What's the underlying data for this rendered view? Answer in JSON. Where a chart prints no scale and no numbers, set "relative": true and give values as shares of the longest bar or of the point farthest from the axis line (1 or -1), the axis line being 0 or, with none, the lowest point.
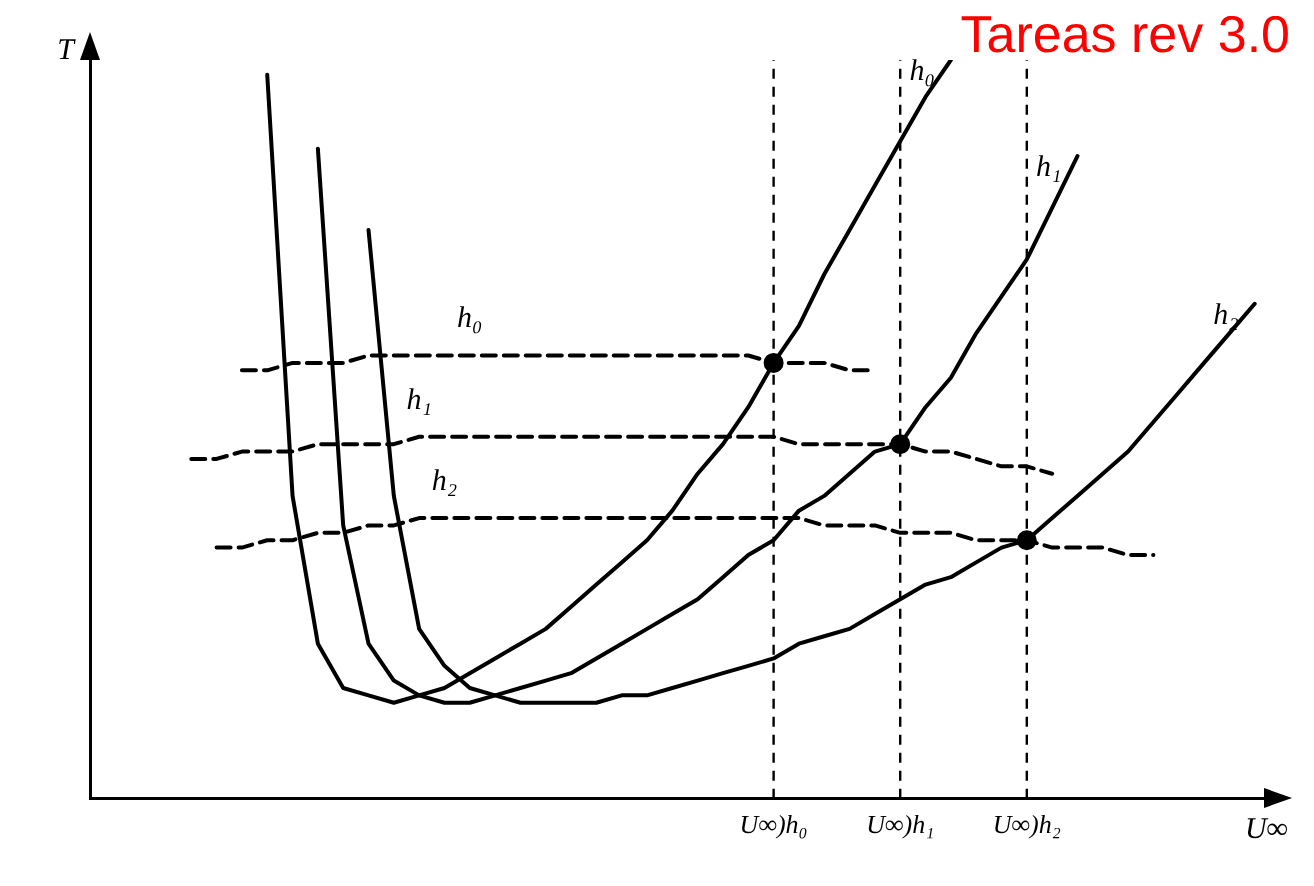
{
  "chart_data": {
    "type": "line",
    "relative": true,
    "title": "Tareas rev 3.0",
    "xlabel": "U∞",
    "ylabel": "T",
    "categories": [
      null,
      null,
      null,
      null,
      null,
      null,
      null,
      null,
      null,
      null,
      null,
      null,
      null,
      null,
      null,
      null,
      null,
      null,
      null,
      null,
      null,
      null,
      null,
      null,
      null,
      null,
      null,
      "U∞)h₀",
      null,
      null,
      null,
      null,
      "U∞)h₁",
      null,
      null,
      null,
      null,
      "U∞)h₂",
      null,
      null,
      null,
      null,
      null,
      null,
      null,
      null,
      null,
      null
    ],
    "series": [
      {
        "name": "h₀",
        "color": "#000000",
        "line_style": "solid",
        "values": [
          null,
          null,
          null,
          null,
          null,
          null,
          null,
          0.98,
          0.41,
          0.21,
          0.15,
          0.14,
          0.13,
          0.14,
          0.15,
          0.17,
          0.19,
          0.21,
          0.23,
          0.26,
          0.29,
          0.32,
          0.35,
          0.39,
          0.44,
          0.48,
          0.53,
          0.59,
          0.64,
          0.71,
          0.77,
          0.83,
          0.89,
          0.95,
          1,
          null,
          null,
          null,
          null,
          null,
          null,
          null,
          null,
          null,
          null,
          null,
          null,
          null
        ]
      },
      {
        "name": "h₁",
        "color": "#000000",
        "line_style": "solid",
        "values": [
          null,
          null,
          null,
          null,
          null,
          null,
          null,
          null,
          null,
          0.88,
          0.37,
          0.21,
          0.16,
          0.14,
          0.13,
          0.13,
          0.14,
          0.15,
          0.16,
          0.17,
          0.19,
          0.21,
          0.23,
          0.25,
          0.27,
          0.3,
          0.33,
          0.35,
          0.39,
          0.41,
          0.44,
          0.47,
          0.48,
          0.53,
          0.57,
          0.63,
          0.68,
          0.73,
          0.8,
          0.87,
          null,
          null,
          null,
          null,
          null,
          null,
          null,
          null
        ]
      },
      {
        "name": "h₂",
        "color": "#000000",
        "line_style": "solid",
        "values": [
          null,
          null,
          null,
          null,
          null,
          null,
          null,
          null,
          null,
          null,
          null,
          0.77,
          0.41,
          0.23,
          0.18,
          0.15,
          0.14,
          0.13,
          0.13,
          0.13,
          0.13,
          0.14,
          0.14,
          0.15,
          0.16,
          0.17,
          0.18,
          0.19,
          0.21,
          0.22,
          0.23,
          0.25,
          0.27,
          0.29,
          0.3,
          0.32,
          0.34,
          0.35,
          0.38,
          0.41,
          0.44,
          0.47,
          0.51,
          0.55,
          0.59,
          0.63,
          0.67,
          null
        ]
      },
      {
        "name": "h₀",
        "color": "#000000",
        "line_style": "dashed",
        "values": [
          null,
          null,
          null,
          null,
          null,
          null,
          0.58,
          0.58,
          0.59,
          0.59,
          0.59,
          0.6,
          0.6,
          0.6,
          0.6,
          0.6,
          0.6,
          0.6,
          0.6,
          0.6,
          0.6,
          0.6,
          0.6,
          0.6,
          0.6,
          0.6,
          0.6,
          0.59,
          0.59,
          0.59,
          0.58,
          0.58,
          null,
          null,
          null,
          null,
          null,
          null,
          null,
          null,
          null,
          null,
          null,
          null,
          null,
          null,
          null,
          null
        ]
      },
      {
        "name": "h₁",
        "color": "#000000",
        "line_style": "dashed",
        "values": [
          null,
          null,
          null,
          null,
          0.46,
          0.46,
          0.47,
          0.47,
          0.47,
          0.48,
          0.48,
          0.48,
          0.48,
          0.49,
          0.49,
          0.49,
          0.49,
          0.49,
          0.49,
          0.49,
          0.49,
          0.49,
          0.49,
          0.49,
          0.49,
          0.49,
          0.49,
          0.49,
          0.48,
          0.48,
          0.48,
          0.48,
          0.48,
          0.47,
          0.47,
          0.46,
          0.45,
          0.45,
          0.44,
          null,
          null,
          null,
          null,
          null,
          null,
          null,
          null,
          null
        ]
      },
      {
        "name": "h₂",
        "color": "#000000",
        "line_style": "dashed",
        "values": [
          null,
          null,
          null,
          null,
          null,
          0.34,
          0.34,
          0.35,
          0.35,
          0.36,
          0.36,
          0.37,
          0.37,
          0.38,
          0.38,
          0.38,
          0.38,
          0.38,
          0.38,
          0.38,
          0.38,
          0.38,
          0.38,
          0.38,
          0.38,
          0.38,
          0.38,
          0.38,
          0.38,
          0.37,
          0.37,
          0.37,
          0.36,
          0.36,
          0.36,
          0.35,
          0.35,
          0.35,
          0.34,
          0.34,
          0.34,
          0.33,
          0.33,
          null,
          null,
          null,
          null,
          null
        ]
      },
      {
        "type": "scatter",
        "color": "#000000",
        "marker": "circle",
        "values": [
          null,
          null,
          null,
          null,
          null,
          null,
          null,
          null,
          null,
          null,
          null,
          null,
          null,
          null,
          null,
          null,
          null,
          null,
          null,
          null,
          null,
          null,
          null,
          null,
          null,
          null,
          null,
          0.59,
          null,
          null,
          null,
          null,
          0.48,
          null,
          null,
          null,
          null,
          0.35,
          null,
          null,
          null,
          null,
          null,
          null,
          null,
          null,
          null,
          null
        ]
      }
    ],
    "ref_lines": [
      {
        "axis": "x",
        "value": "U∞)h₀",
        "line_style": "dashed",
        "color": "#000000"
      },
      {
        "axis": "x",
        "value": "U∞)h₁",
        "line_style": "dashed",
        "color": "#000000"
      },
      {
        "axis": "x",
        "value": "U∞)h₂",
        "line_style": "dashed",
        "color": "#000000"
      }
    ]
  }
}
